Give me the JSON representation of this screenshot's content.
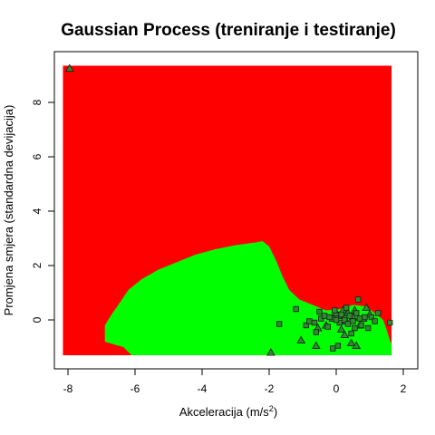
{
  "chart_data": {
    "type": "scatter",
    "title": "Gaussian Process (treniranje i testiranje)",
    "xlabel": {
      "base": "Akceleracija (m/s",
      "sup": "2",
      "close": ")"
    },
    "ylabel": "Promjena smjera (standardna devijacija)",
    "xlim": [
      -8.15,
      1.65
    ],
    "ylim": [
      -1.3,
      9.35
    ],
    "grid": false,
    "x_ticks": [
      "-8",
      "-6",
      "-4",
      "-2",
      "0",
      "2"
    ],
    "y_ticks": [
      "0",
      "2",
      "4",
      "6",
      "8"
    ],
    "background_color": "#ff0000",
    "region_color": "#00ff00",
    "decision_region": [
      [
        -6.9,
        -0.8
      ],
      [
        -6.9,
        -0.2
      ],
      [
        -6.7,
        0.2
      ],
      [
        -6.5,
        0.55
      ],
      [
        -6.2,
        1.1
      ],
      [
        -5.8,
        1.5
      ],
      [
        -5.3,
        1.85
      ],
      [
        -4.8,
        2.1
      ],
      [
        -4.2,
        2.4
      ],
      [
        -3.6,
        2.6
      ],
      [
        -3.0,
        2.75
      ],
      [
        -2.4,
        2.85
      ],
      [
        -2.2,
        2.9
      ],
      [
        -2.0,
        2.7
      ],
      [
        -1.8,
        2.2
      ],
      [
        -1.6,
        1.6
      ],
      [
        -1.4,
        1.1
      ],
      [
        -1.1,
        0.75
      ],
      [
        -0.6,
        0.5
      ],
      [
        -0.3,
        0.35
      ],
      [
        0.1,
        0.4
      ],
      [
        0.5,
        0.55
      ],
      [
        0.9,
        0.5
      ],
      [
        1.2,
        0.2
      ],
      [
        1.4,
        0.0
      ],
      [
        1.5,
        -0.35
      ],
      [
        1.6,
        -0.75
      ],
      [
        1.65,
        -0.9
      ],
      [
        1.65,
        -1.3
      ],
      [
        -6.1,
        -1.3
      ],
      [
        -6.35,
        -1.0
      ]
    ],
    "series": [
      {
        "shape": "triangle",
        "points": [
          [
            -7.95,
            9.25
          ],
          [
            -1.95,
            -1.2
          ],
          [
            -1.05,
            -0.75
          ],
          [
            -0.6,
            -0.95
          ],
          [
            0.45,
            -0.85
          ],
          [
            0.6,
            -0.95
          ],
          [
            0.9,
            0.45
          ],
          [
            0.05,
            0.15
          ],
          [
            0.2,
            0.35
          ],
          [
            0.35,
            0.25
          ],
          [
            -0.1,
            0.05
          ],
          [
            0.5,
            0.1
          ],
          [
            0.7,
            -0.2
          ],
          [
            0.15,
            -0.35
          ],
          [
            -0.3,
            -0.2
          ],
          [
            0.3,
            -0.05
          ],
          [
            0.8,
            0.05
          ],
          [
            0.0,
            0.25
          ],
          [
            -0.55,
            -0.3
          ],
          [
            0.55,
            0.35
          ],
          [
            1.0,
            0.2
          ],
          [
            0.25,
            -0.55
          ]
        ]
      },
      {
        "shape": "square",
        "points": [
          [
            -1.7,
            -0.15
          ],
          [
            -1.2,
            0.4
          ],
          [
            -0.9,
            -0.2
          ],
          [
            -0.8,
            -0.05
          ],
          [
            -0.65,
            -0.1
          ],
          [
            -0.5,
            0.3
          ],
          [
            -0.45,
            0.05
          ],
          [
            -0.35,
            0.15
          ],
          [
            -0.25,
            -0.25
          ],
          [
            -0.1,
            -1.05
          ],
          [
            0.05,
            -0.95
          ],
          [
            0.1,
            -0.1
          ],
          [
            0.15,
            0.2
          ],
          [
            0.25,
            0.0
          ],
          [
            0.35,
            -0.15
          ],
          [
            0.4,
            0.15
          ],
          [
            0.5,
            -0.05
          ],
          [
            0.6,
            0.25
          ],
          [
            0.65,
            0.75
          ],
          [
            0.7,
            0.05
          ],
          [
            0.75,
            -0.2
          ],
          [
            0.85,
            0.1
          ],
          [
            0.95,
            -0.3
          ],
          [
            1.05,
            0.1
          ],
          [
            1.15,
            -0.05
          ],
          [
            1.6,
            -0.1
          ],
          [
            -0.2,
            0.1
          ],
          [
            0.3,
            0.45
          ],
          [
            0.55,
            -0.3
          ],
          [
            0.0,
            0.0
          ],
          [
            -0.05,
            0.35
          ],
          [
            0.45,
            -0.5
          ],
          [
            -0.6,
            -0.45
          ],
          [
            1.25,
            0.25
          ]
        ]
      }
    ]
  }
}
